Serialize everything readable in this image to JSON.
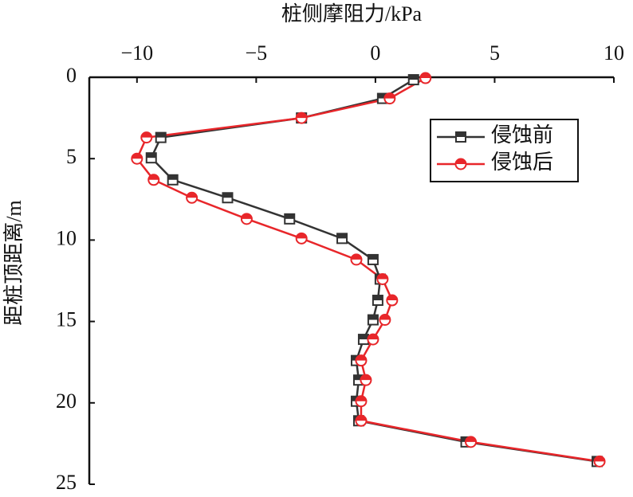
{
  "chart_data": {
    "type": "line",
    "x_label": "桩侧摩阻力/kPa",
    "y_label": "距桩顶距离/m",
    "xlim": [
      -12,
      10
    ],
    "xticks": [
      {
        "value": -10,
        "label": "−10"
      },
      {
        "value": -5,
        "label": "−5"
      },
      0,
      5,
      10
    ],
    "ylim": [
      0,
      25
    ],
    "yticks": [
      0,
      5,
      10,
      15,
      20,
      25
    ],
    "y_inverted": true,
    "legend": "upper right",
    "series": [
      {
        "name": "侵蚀前",
        "color": "#333333",
        "marker": "square",
        "x": [
          1.6,
          0.3,
          -3.1,
          -9.0,
          -9.4,
          -8.5,
          -6.2,
          -3.6,
          -1.4,
          -0.1,
          0.2,
          0.1,
          -0.1,
          -0.5,
          -0.8,
          -0.7,
          -0.8,
          -0.7,
          3.8,
          9.3
        ],
        "y": [
          0.15,
          1.3,
          2.5,
          3.7,
          4.95,
          6.3,
          7.4,
          8.7,
          9.9,
          11.2,
          12.4,
          13.7,
          14.9,
          16.1,
          17.4,
          18.6,
          19.9,
          21.1,
          22.4,
          23.6
        ]
      },
      {
        "name": "侵蚀后",
        "color": "#e8262a",
        "marker": "circle",
        "x": [
          2.1,
          0.6,
          -3.1,
          -9.6,
          -10.0,
          -9.3,
          -7.7,
          -5.4,
          -3.1,
          -0.8,
          0.3,
          0.7,
          0.4,
          -0.1,
          -0.6,
          -0.4,
          -0.6,
          -0.6,
          4.0,
          9.4
        ],
        "y": [
          0.05,
          1.3,
          2.5,
          3.7,
          5.0,
          6.3,
          7.4,
          8.7,
          9.9,
          11.2,
          12.4,
          13.7,
          14.9,
          16.1,
          17.4,
          18.6,
          19.9,
          21.1,
          22.4,
          23.6
        ]
      }
    ]
  }
}
